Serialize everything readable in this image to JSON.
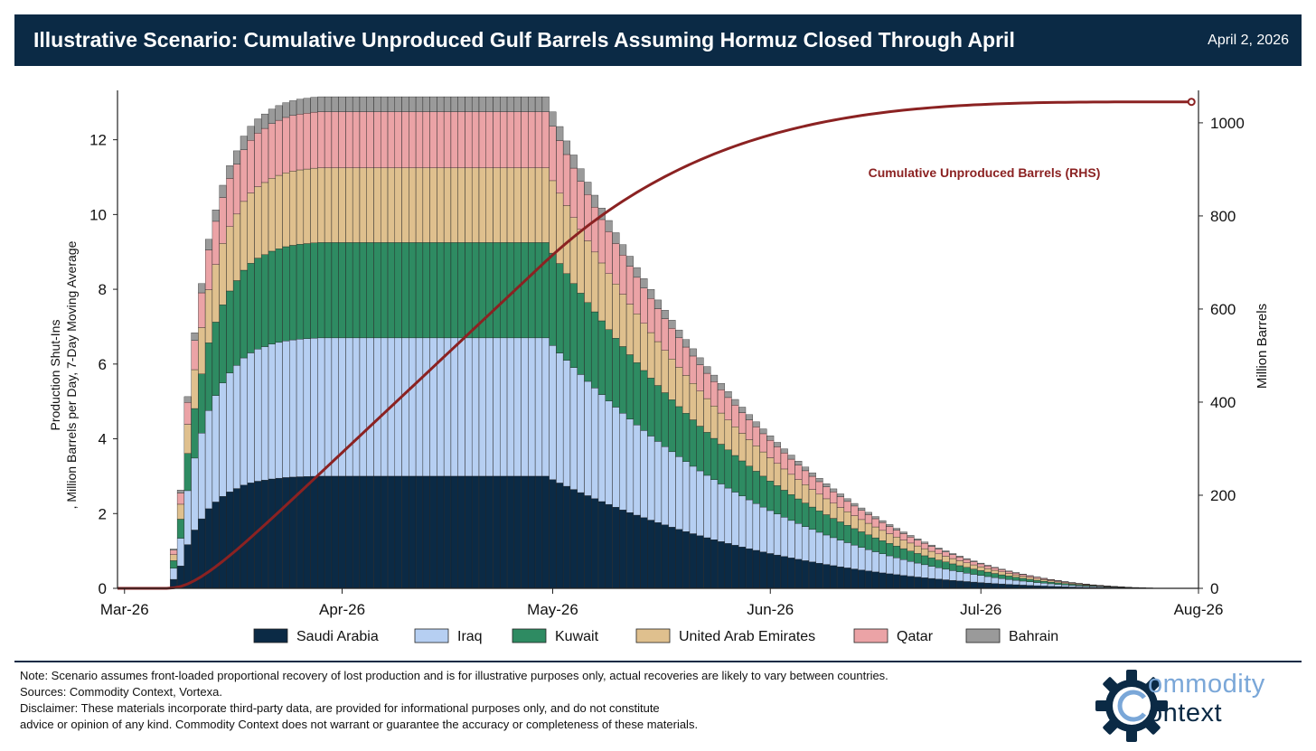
{
  "header": {
    "title": "Illustrative Scenario: Cumulative Unproduced Gulf Barrels Assuming Hormuz Closed Through April",
    "date": "April 2, 2026"
  },
  "chart_data": {
    "type": "bar",
    "stacked": true,
    "title": "Illustrative Scenario: Cumulative Unproduced Gulf Barrels Assuming Hormuz Closed Through April",
    "ylabel_lines": [
      "Production Shut-Ins",
      ", Million Barrels per Day, 7-Day Moving Average"
    ],
    "y2label": "Million Barrels",
    "ylim": [
      0,
      13.2
    ],
    "y2lim": [
      0,
      1060
    ],
    "yticks": [
      0,
      2,
      4,
      6,
      8,
      10,
      12
    ],
    "y2ticks": [
      0,
      200,
      400,
      600,
      800,
      1000
    ],
    "xlim": [
      "2026-02-28",
      "2026-08-01"
    ],
    "xticks": [
      "Mar-26",
      "Apr-26",
      "May-26",
      "Jun-26",
      "Jul-26",
      "Aug-26"
    ],
    "legend_position": "bottom",
    "series": [
      {
        "name": "Saudi Arabia",
        "color": "#0b2a45",
        "plateau": 3.0
      },
      {
        "name": "Iraq",
        "color": "#b6cff2",
        "plateau": 3.7
      },
      {
        "name": "Kuwait",
        "color": "#2e8b62",
        "plateau": 2.55
      },
      {
        "name": "United Arab Emirates",
        "color": "#dfc08e",
        "plateau": 2.0
      },
      {
        "name": "Qatar",
        "color": "#eba3a6",
        "plateau": 1.5
      },
      {
        "name": "Bahrain",
        "color": "#9a9a9a",
        "plateau": 0.4
      }
    ],
    "bars": {
      "first_date": "2026-03-08",
      "last_date": "2026-07-31",
      "ramp_up_fraction": [
        0.08,
        0.2,
        0.39,
        0.52,
        0.62,
        0.71,
        0.77,
        0.82,
        0.86,
        0.89,
        0.92,
        0.94,
        0.955,
        0.965,
        0.975,
        0.982,
        0.988,
        0.992,
        0.995,
        0.997,
        0.999,
        1.0
      ],
      "plateau_end": "2026-04-30",
      "decline_end": "2026-07-31"
    },
    "cumulative_line": {
      "name": "Cumulative Unproduced Barrels (RHS)",
      "color": "#8b2222",
      "start_date": "2026-02-28",
      "end_date": "2026-07-31",
      "end_value": 1045
    }
  },
  "notes": {
    "line1": "Note: Scenario assumes front-loaded proportional recovery of lost production and is for illustrative purposes only, actual recoveries are likely to vary between countries.",
    "line2": "Sources: Commodity Context, Vortexa.",
    "line3": "Disclaimer: These materials incorporate third-party data, are provided for informational purposes only, and do not constitute",
    "line4": "advice or opinion of any kind. Commodity Context does not warrant or guarantee the accuracy or completeness of these materials."
  },
  "logo": {
    "line1": "ommodity",
    "line2": "ontext",
    "icon": "gear-c-logo-icon"
  }
}
